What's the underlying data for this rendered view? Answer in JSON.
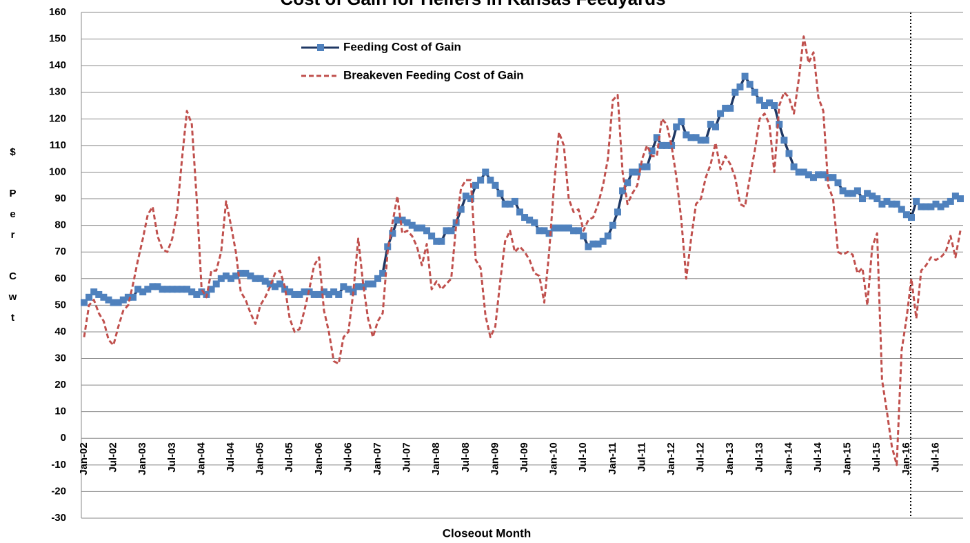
{
  "chart_data": {
    "type": "line",
    "title": "Cost of Gain for Heifers in Kansas Feedyards",
    "x_label": "Closeout Month",
    "y_label": "$ Per Cwt",
    "categories": [
      "Jan-02",
      null,
      null,
      null,
      null,
      null,
      "Jul-02",
      null,
      null,
      null,
      null,
      null,
      "Jan-03",
      null,
      null,
      null,
      null,
      null,
      "Jul-03",
      null,
      null,
      null,
      null,
      null,
      "Jan-04",
      null,
      null,
      null,
      null,
      null,
      "Jul-04",
      null,
      null,
      null,
      null,
      null,
      "Jan-05",
      null,
      null,
      null,
      null,
      null,
      "Jul-05",
      null,
      null,
      null,
      null,
      null,
      "Jan-06",
      null,
      null,
      null,
      null,
      null,
      "Jul-06",
      null,
      null,
      null,
      null,
      null,
      "Jan-07",
      null,
      null,
      null,
      null,
      null,
      "Jul-07",
      null,
      null,
      null,
      null,
      null,
      "Jan-08",
      null,
      null,
      null,
      null,
      null,
      "Jul-08",
      null,
      null,
      null,
      null,
      null,
      "Jan-09",
      null,
      null,
      null,
      null,
      null,
      "Jul-09",
      null,
      null,
      null,
      null,
      null,
      "Jan-10",
      null,
      null,
      null,
      null,
      null,
      "Jul-10",
      null,
      null,
      null,
      null,
      null,
      "Jan-11",
      null,
      null,
      null,
      null,
      null,
      "Jul-11",
      null,
      null,
      null,
      null,
      null,
      "Jan-12",
      null,
      null,
      null,
      null,
      null,
      "Jul-12",
      null,
      null,
      null,
      null,
      null,
      "Jan-13",
      null,
      null,
      null,
      null,
      null,
      "Jul-13",
      null,
      null,
      null,
      null,
      null,
      "Jan-14",
      null,
      null,
      null,
      null,
      null,
      "Jul-14",
      null,
      null,
      null,
      null,
      null,
      "Jan-15",
      null,
      null,
      null,
      null,
      null,
      "Jul-15",
      null,
      null,
      null,
      null,
      null,
      "Jan-16",
      null,
      null,
      null,
      null,
      null,
      "Jul-16",
      null,
      null,
      null,
      null,
      null
    ],
    "series": [
      {
        "name": "Feeding Cost of Gain",
        "color": "#1f3864",
        "marker_color": "#4f81bd",
        "values": [
          51,
          53,
          55,
          54,
          53,
          52,
          51,
          51,
          52,
          53,
          53,
          56,
          55,
          56,
          57,
          57,
          56,
          56,
          56,
          56,
          56,
          56,
          55,
          54,
          55,
          54,
          56,
          58,
          60,
          61,
          60,
          61,
          62,
          62,
          61,
          60,
          60,
          59,
          58,
          57,
          58,
          56,
          55,
          54,
          54,
          55,
          55,
          54,
          54,
          55,
          54,
          55,
          54,
          57,
          56,
          55,
          57,
          57,
          58,
          58,
          60,
          62,
          72,
          77,
          82,
          82,
          81,
          80,
          79,
          79,
          78,
          76,
          74,
          74,
          78,
          78,
          81,
          86,
          91,
          90,
          95,
          97,
          100,
          97,
          95,
          92,
          88,
          88,
          89,
          85,
          83,
          82,
          81,
          78,
          78,
          77,
          79,
          79,
          79,
          79,
          78,
          78,
          76,
          72,
          73,
          73,
          74,
          76,
          80,
          85,
          93,
          96,
          100,
          100,
          102,
          102,
          108,
          113,
          110,
          110,
          110,
          117,
          119,
          114,
          113,
          113,
          112,
          112,
          118,
          117,
          122,
          124,
          124,
          130,
          132,
          136,
          133,
          130,
          127,
          125,
          126,
          125,
          118,
          112,
          107,
          102,
          100,
          100,
          99,
          98,
          99,
          99,
          98,
          98,
          96,
          93,
          92,
          92,
          93,
          90,
          92,
          91,
          90,
          88,
          89,
          88,
          88,
          86,
          84,
          83,
          89,
          87,
          87,
          87,
          88,
          87,
          88,
          89,
          91,
          90
        ]
      },
      {
        "name": "Breakeven Feeding Cost of Gain",
        "color": "#c0504d",
        "dashed": true,
        "values": [
          38,
          50,
          52,
          47,
          44,
          37,
          35,
          42,
          48,
          50,
          58,
          67,
          75,
          84,
          87,
          76,
          71,
          70,
          75,
          85,
          105,
          123,
          118,
          90,
          56,
          53,
          63,
          63,
          70,
          89,
          80,
          70,
          55,
          52,
          47,
          43,
          50,
          53,
          57,
          62,
          63,
          57,
          45,
          40,
          41,
          48,
          56,
          65,
          68,
          48,
          40,
          29,
          28,
          38,
          40,
          55,
          75,
          58,
          45,
          38,
          44,
          47,
          70,
          81,
          91,
          77,
          78,
          76,
          72,
          65,
          73,
          56,
          59,
          56,
          58,
          60,
          80,
          94,
          97,
          97,
          67,
          64,
          46,
          38,
          42,
          59,
          74,
          78,
          70,
          72,
          70,
          67,
          62,
          61,
          51,
          70,
          95,
          115,
          110,
          90,
          85,
          86,
          78,
          82,
          83,
          88,
          95,
          105,
          127,
          129,
          100,
          88,
          92,
          95,
          105,
          110,
          106,
          106,
          120,
          118,
          110,
          98,
          82,
          60,
          75,
          88,
          90,
          98,
          103,
          111,
          101,
          106,
          103,
          98,
          88,
          87,
          98,
          108,
          120,
          122,
          118,
          100,
          125,
          130,
          128,
          122,
          135,
          151,
          141,
          145,
          128,
          123,
          95,
          90,
          70,
          69,
          70,
          69,
          62,
          64,
          50,
          72,
          77,
          22,
          10,
          -3,
          -10,
          33,
          45,
          60,
          45,
          63,
          65,
          68,
          67,
          68,
          70,
          76,
          68,
          78
        ]
      }
    ],
    "ylim": [
      -30,
      160
    ],
    "yticks": [
      -30,
      -20,
      -10,
      0,
      10,
      20,
      30,
      40,
      50,
      60,
      70,
      80,
      90,
      100,
      110,
      120,
      130,
      140,
      150,
      160
    ],
    "grid": true
  }
}
